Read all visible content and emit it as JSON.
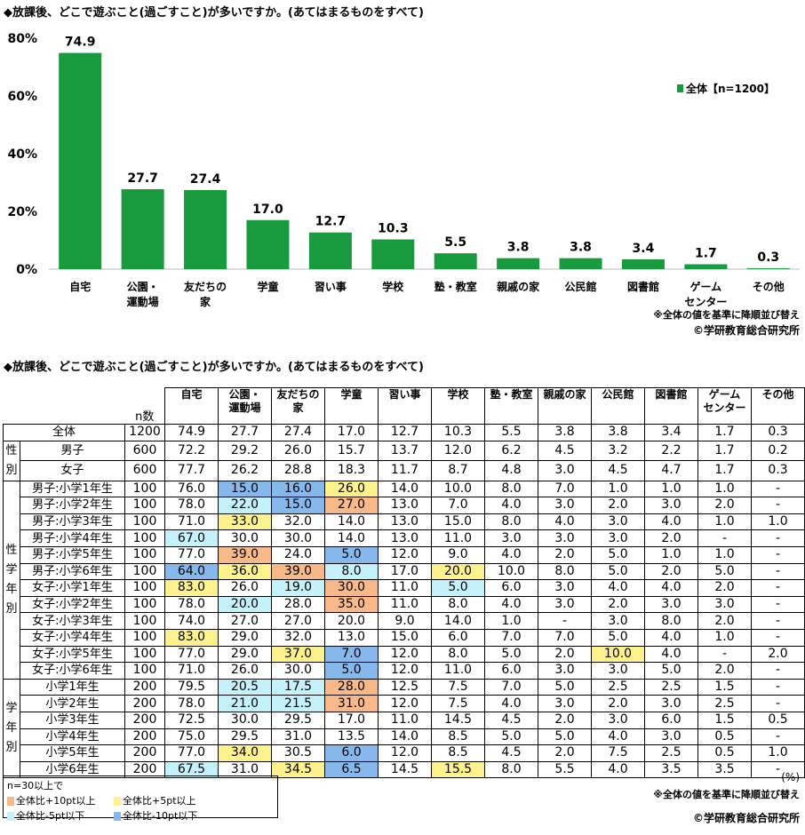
{
  "title": "◆放課後、どこで遊ぶこと(過ごすこと)が多いですか。(あてはまるものをすべて)",
  "colors": {
    "bar": "#1a9a3f",
    "orange": "#f7b98a",
    "yellow": "#fdf28e",
    "cyan": "#c5f2fa",
    "blue": "#86b8ec"
  },
  "chart_data": {
    "type": "bar",
    "categories": [
      "自宅",
      "公園・\n運動場",
      "友だちの\n家",
      "学童",
      "習い事",
      "学校",
      "塾・教室",
      "親戚の家",
      "公民館",
      "図書館",
      "ゲーム\nセンター",
      "その他"
    ],
    "series": [
      {
        "name": "全体【n=1200】",
        "values": [
          74.9,
          27.7,
          27.4,
          17.0,
          12.7,
          10.3,
          5.5,
          3.8,
          3.8,
          3.4,
          1.7,
          0.3
        ]
      }
    ],
    "yticks": [
      "0%",
      "20%",
      "40%",
      "60%",
      "80%"
    ],
    "ylim": [
      0,
      80
    ],
    "legend": "top-right",
    "grid": false
  },
  "chart_notes": {
    "sort": "※全体の値を基準に降順並び替え",
    "copyright": "©学研教育総合研究所"
  },
  "table": {
    "title": "◆放課後、どこで遊ぶこと(過ごすこと)が多いですか。(あてはまるものをすべて)",
    "n_header": "n数",
    "columns": [
      "自宅",
      "公園・\n運動場",
      "友だちの\n家",
      "学童",
      "習い事",
      "学校",
      "塾・教室",
      "親戚の家",
      "公民館",
      "図書館",
      "ゲーム\nセンター",
      "その他"
    ],
    "groups": [
      {
        "label": "",
        "rows": [
          {
            "label": "全体",
            "n": "1200",
            "values": [
              "74.9",
              "27.7",
              "27.4",
              "17.0",
              "12.7",
              "10.3",
              "5.5",
              "3.8",
              "3.8",
              "3.4",
              "1.7",
              "0.3"
            ],
            "hl": []
          }
        ]
      },
      {
        "label": "性別",
        "rows": [
          {
            "label": "男子",
            "n": "600",
            "values": [
              "72.2",
              "29.2",
              "26.0",
              "15.7",
              "13.7",
              "12.0",
              "6.2",
              "4.5",
              "3.2",
              "2.2",
              "1.7",
              "0.2"
            ],
            "hl": []
          },
          {
            "label": "女子",
            "n": "600",
            "values": [
              "77.7",
              "26.2",
              "28.8",
              "18.3",
              "11.7",
              "8.7",
              "4.8",
              "3.0",
              "4.5",
              "4.7",
              "1.7",
              "0.3"
            ],
            "hl": []
          }
        ]
      },
      {
        "label": "性学年別",
        "rows": [
          {
            "label": "男子:小学1年生",
            "n": "100",
            "values": [
              "76.0",
              "15.0",
              "16.0",
              "26.0",
              "14.0",
              "10.0",
              "8.0",
              "7.0",
              "1.0",
              "1.0",
              "1.0",
              "-"
            ],
            "hl": [
              "",
              "b",
              "b",
              "y"
            ]
          },
          {
            "label": "男子:小学2年生",
            "n": "100",
            "values": [
              "78.0",
              "22.0",
              "15.0",
              "27.0",
              "13.0",
              "7.0",
              "4.0",
              "3.0",
              "2.0",
              "3.0",
              "2.0",
              "-"
            ],
            "hl": [
              "",
              "c",
              "b",
              "o"
            ]
          },
          {
            "label": "男子:小学3年生",
            "n": "100",
            "values": [
              "71.0",
              "33.0",
              "32.0",
              "14.0",
              "13.0",
              "15.0",
              "8.0",
              "4.0",
              "3.0",
              "4.0",
              "1.0",
              "1.0"
            ],
            "hl": [
              "",
              "y"
            ]
          },
          {
            "label": "男子:小学4年生",
            "n": "100",
            "values": [
              "67.0",
              "30.0",
              "30.0",
              "14.0",
              "13.0",
              "11.0",
              "3.0",
              "3.0",
              "3.0",
              "2.0",
              "-",
              "-"
            ],
            "hl": [
              "c"
            ]
          },
          {
            "label": "男子:小学5年生",
            "n": "100",
            "values": [
              "77.0",
              "39.0",
              "24.0",
              "5.0",
              "12.0",
              "9.0",
              "4.0",
              "2.0",
              "5.0",
              "1.0",
              "1.0",
              "-"
            ],
            "hl": [
              "",
              "o",
              "",
              "b"
            ]
          },
          {
            "label": "男子:小学6年生",
            "n": "100",
            "values": [
              "64.0",
              "36.0",
              "39.0",
              "8.0",
              "17.0",
              "20.0",
              "10.0",
              "8.0",
              "5.0",
              "2.0",
              "5.0",
              "-"
            ],
            "hl": [
              "b",
              "y",
              "o",
              "c",
              "",
              "y"
            ]
          },
          {
            "label": "女子:小学1年生",
            "n": "100",
            "values": [
              "83.0",
              "26.0",
              "19.0",
              "30.0",
              "11.0",
              "5.0",
              "6.0",
              "3.0",
              "4.0",
              "4.0",
              "2.0",
              "-"
            ],
            "hl": [
              "y",
              "",
              "c",
              "o",
              "",
              "c"
            ]
          },
          {
            "label": "女子:小学2年生",
            "n": "100",
            "values": [
              "78.0",
              "20.0",
              "28.0",
              "35.0",
              "11.0",
              "8.0",
              "4.0",
              "3.0",
              "2.0",
              "3.0",
              "3.0",
              "-"
            ],
            "hl": [
              "",
              "c",
              "",
              "o"
            ]
          },
          {
            "label": "女子:小学3年生",
            "n": "100",
            "values": [
              "74.0",
              "27.0",
              "27.0",
              "20.0",
              "9.0",
              "14.0",
              "1.0",
              "-",
              "3.0",
              "8.0",
              "2.0",
              "-"
            ],
            "hl": []
          },
          {
            "label": "女子:小学4年生",
            "n": "100",
            "values": [
              "83.0",
              "29.0",
              "32.0",
              "13.0",
              "15.0",
              "6.0",
              "7.0",
              "7.0",
              "5.0",
              "4.0",
              "1.0",
              "-"
            ],
            "hl": [
              "y"
            ]
          },
          {
            "label": "女子:小学5年生",
            "n": "100",
            "values": [
              "77.0",
              "29.0",
              "37.0",
              "7.0",
              "12.0",
              "8.0",
              "5.0",
              "2.0",
              "10.0",
              "4.0",
              "-",
              "2.0"
            ],
            "hl": [
              "",
              "",
              "y",
              "b",
              "",
              "",
              "",
              "",
              "y"
            ]
          },
          {
            "label": "女子:小学6年生",
            "n": "100",
            "values": [
              "71.0",
              "26.0",
              "30.0",
              "5.0",
              "12.0",
              "11.0",
              "6.0",
              "3.0",
              "3.0",
              "5.0",
              "2.0",
              "-"
            ],
            "hl": [
              "",
              "",
              "",
              "b"
            ]
          }
        ]
      },
      {
        "label": "学年別",
        "rows": [
          {
            "label": "小学1年生",
            "n": "200",
            "values": [
              "79.5",
              "20.5",
              "17.5",
              "28.0",
              "12.5",
              "7.5",
              "7.0",
              "5.0",
              "2.5",
              "2.5",
              "1.5",
              "-"
            ],
            "hl": [
              "",
              "c",
              "c",
              "o"
            ]
          },
          {
            "label": "小学2年生",
            "n": "200",
            "values": [
              "78.0",
              "21.0",
              "21.5",
              "31.0",
              "12.0",
              "7.5",
              "4.0",
              "3.0",
              "2.0",
              "3.0",
              "2.5",
              "-"
            ],
            "hl": [
              "",
              "c",
              "c",
              "o"
            ]
          },
          {
            "label": "小学3年生",
            "n": "200",
            "values": [
              "72.5",
              "30.0",
              "29.5",
              "17.0",
              "11.0",
              "14.5",
              "4.5",
              "2.0",
              "3.0",
              "6.0",
              "1.5",
              "0.5"
            ],
            "hl": []
          },
          {
            "label": "小学4年生",
            "n": "200",
            "values": [
              "75.0",
              "29.5",
              "31.0",
              "13.5",
              "14.0",
              "8.5",
              "5.0",
              "5.0",
              "4.0",
              "3.0",
              "0.5",
              "-"
            ],
            "hl": []
          },
          {
            "label": "小学5年生",
            "n": "200",
            "values": [
              "77.0",
              "34.0",
              "30.5",
              "6.0",
              "12.0",
              "8.5",
              "4.5",
              "2.0",
              "7.5",
              "2.5",
              "0.5",
              "1.0"
            ],
            "hl": [
              "",
              "y",
              "",
              "b"
            ]
          },
          {
            "label": "小学6年生",
            "n": "200",
            "values": [
              "67.5",
              "31.0",
              "34.5",
              "6.5",
              "14.5",
              "15.5",
              "8.0",
              "5.5",
              "4.0",
              "3.5",
              "3.5",
              "-"
            ],
            "hl": [
              "c",
              "",
              "y",
              "b",
              "",
              "y"
            ]
          }
        ]
      }
    ],
    "unit": "(%)",
    "sort_note": "※全体の値を基準に降順並び替え",
    "copyright": "©学研教育総合研究所"
  },
  "legend": {
    "heading": "n=30以上で",
    "items": [
      {
        "label": "全体比+10pt以上",
        "color": "#f7b98a"
      },
      {
        "label": "全体比+5pt以上",
        "color": "#fdf28e"
      },
      {
        "label": "全体比-5pt以下",
        "color": "#c5f2fa"
      },
      {
        "label": "全体比-10pt以下",
        "color": "#86b8ec"
      }
    ]
  }
}
